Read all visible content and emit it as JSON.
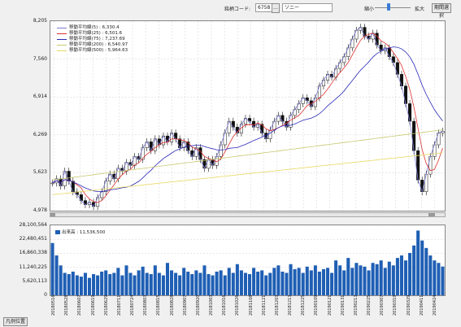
{
  "toolbar": {
    "code_label": "銘柄コード:",
    "code_value": "6758",
    "name_value": "ソニー",
    "shrink_label": "縮小",
    "enlarge_label": "拡大",
    "period_button": "期間選択",
    "slider_level": 0.35
  },
  "legend": [
    {
      "label": "移動平均線(5) : 6,330.4",
      "color": "#7b7bd6"
    },
    {
      "label": "移動平均線(25) : 6,501.6",
      "color": "#e03030"
    },
    {
      "label": "移動平均線(75) : 7,237.69",
      "color": "#2a2ab8"
    },
    {
      "label": "移動平均線(200) : 6,540.97",
      "color": "#c8c870"
    },
    {
      "label": "移動平均線(500) : 5,964.63",
      "color": "#e8d860"
    }
  ],
  "price_axis": [
    "8,205",
    "7,560",
    "6,914",
    "6,269",
    "5,623",
    "4,978"
  ],
  "volume_axis": [
    "28,100,564",
    "22,480,451",
    "16,860,338",
    "11,240,225",
    "5,620,113",
    "0"
  ],
  "volume_legend": "出来高 : 11,536,500",
  "x_labels": [
    "20180516",
    "20180530",
    "20180613",
    "20180627",
    "20180711",
    "20180725",
    "20180808",
    "20180822",
    "20180905",
    "20180919",
    "20181003",
    "20181017",
    "20181031",
    "20181114",
    "20181128",
    "20181212",
    "20181226",
    "20190109",
    "20190123",
    "20190206",
    "20190220",
    "20190306",
    "20190320",
    "20190403",
    "20190417",
    "20190501",
    "20190515",
    "20190529",
    "20190612",
    "20190626"
  ],
  "x_labels_visible": [
    "2018/05/16",
    "2018/05/28",
    "2018/06/07",
    "2018/06/19",
    "2018/06/29",
    "2018/07/11",
    "2018/07/24",
    "2018/08/03",
    "2018/08/15",
    "2018/08/28",
    "2018/09/07",
    "2018/09/20",
    "2018/10/03",
    "2018/10/16",
    "2018/10/26",
    "2018/11/08",
    "2018/11/21",
    "2018/12/03",
    "2018/12/13",
    "2018/12/25",
    "2019/01/09",
    "2019/01/21",
    "2019/01/31",
    "2019/02/13",
    "2019/02/25",
    "2019/03/07",
    "2019/03/19",
    "2019/03/29",
    "2019/04/11",
    "2019/04/24"
  ],
  "bottom_button": "凡例位置",
  "chart_data": {
    "type": "candlestick",
    "price_range": [
      4978,
      8205
    ],
    "volume_range": [
      0,
      28100564
    ],
    "closes": [
      5450,
      5520,
      5400,
      5650,
      5480,
      5300,
      5250,
      5150,
      5080,
      5120,
      5050,
      5200,
      5300,
      5480,
      5600,
      5520,
      5700,
      5650,
      5800,
      5750,
      5900,
      5850,
      6050,
      6150,
      6000,
      6200,
      6100,
      6250,
      6150,
      6300,
      6200,
      6050,
      6150,
      6000,
      5900,
      6050,
      5850,
      5700,
      5850,
      5750,
      5900,
      6100,
      6300,
      6500,
      6400,
      6300,
      6450,
      6550,
      6500,
      6400,
      6450,
      6300,
      6200,
      6350,
      6500,
      6600,
      6500,
      6400,
      6600,
      6700,
      6800,
      6900,
      6850,
      6750,
      6900,
      7100,
      7200,
      7300,
      7250,
      7400,
      7500,
      7600,
      7750,
      7900,
      8050,
      8100,
      7950,
      7900,
      8000,
      7800,
      7700,
      7750,
      7600,
      7500,
      7300,
      7100,
      6800,
      6500,
      6000,
      5500,
      5300,
      5600,
      5900,
      6100,
      6300,
      6330
    ],
    "volumes": [
      21000000,
      16000000,
      12000000,
      9000000,
      8500000,
      9500000,
      8000000,
      7500000,
      9000000,
      7000000,
      8500000,
      8000000,
      9500000,
      10000000,
      8500000,
      9000000,
      11000000,
      8000000,
      12000000,
      9000000,
      8000000,
      10000000,
      11500000,
      9000000,
      8500000,
      12000000,
      9000000,
      8000000,
      13000000,
      10000000,
      9000000,
      8000000,
      11000000,
      9500000,
      8500000,
      10000000,
      9000000,
      12000000,
      8500000,
      8000000,
      9500000,
      10000000,
      8000000,
      11000000,
      9000000,
      12500000,
      10000000,
      9000000,
      8500000,
      11000000,
      9500000,
      10000000,
      8000000,
      9000000,
      11000000,
      12000000,
      9500000,
      9000000,
      12500000,
      10500000,
      11000000,
      9000000,
      11500000,
      10000000,
      12000000,
      9500000,
      10500000,
      11000000,
      9000000,
      14000000,
      12000000,
      10000000,
      15000000,
      11000000,
      13000000,
      12000000,
      11500000,
      10000000,
      13000000,
      12500000,
      14000000,
      11000000,
      13500000,
      12000000,
      15000000,
      16000000,
      14000000,
      17000000,
      20000000,
      26000000,
      22000000,
      19000000,
      16000000,
      14000000,
      13000000,
      11536500
    ]
  }
}
